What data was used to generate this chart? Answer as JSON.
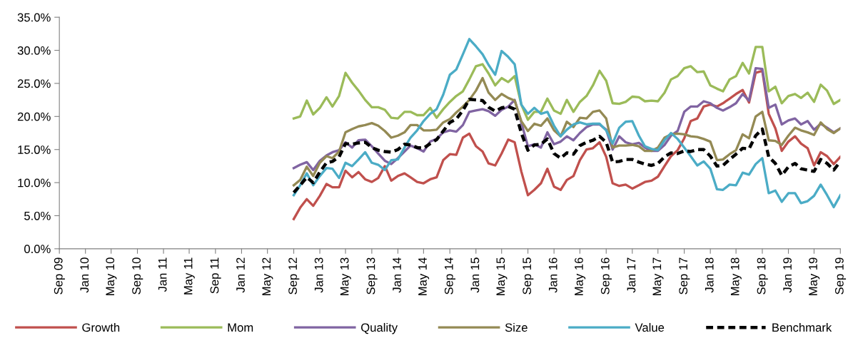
{
  "chart_data": {
    "type": "line",
    "x": [
      "2012-09",
      "2012-10",
      "2012-11",
      "2012-12",
      "2013-01",
      "2013-02",
      "2013-03",
      "2013-04",
      "2013-05",
      "2013-06",
      "2013-07",
      "2013-08",
      "2013-09",
      "2013-10",
      "2013-11",
      "2013-12",
      "2014-01",
      "2014-02",
      "2014-03",
      "2014-04",
      "2014-05",
      "2014-06",
      "2014-07",
      "2014-08",
      "2014-09",
      "2014-10",
      "2014-11",
      "2014-12",
      "2015-01",
      "2015-02",
      "2015-03",
      "2015-04",
      "2015-05",
      "2015-06",
      "2015-07",
      "2015-08",
      "2015-09",
      "2015-10",
      "2015-11",
      "2015-12",
      "2016-01",
      "2016-02",
      "2016-03",
      "2016-04",
      "2016-05",
      "2016-06",
      "2016-07",
      "2016-08",
      "2016-09",
      "2016-10",
      "2016-11",
      "2016-12",
      "2017-01",
      "2017-02",
      "2017-03",
      "2017-04",
      "2017-05",
      "2017-06",
      "2017-07",
      "2017-08",
      "2017-09",
      "2017-10",
      "2017-11",
      "2017-12",
      "2018-01",
      "2018-02",
      "2018-03",
      "2018-04",
      "2018-05",
      "2018-06",
      "2018-07",
      "2018-08",
      "2018-09",
      "2018-10",
      "2018-11",
      "2018-12",
      "2019-01",
      "2019-02",
      "2019-03",
      "2019-04",
      "2019-05",
      "2019-06",
      "2019-07",
      "2019-08",
      "2019-09"
    ],
    "series": [
      {
        "name": "Growth",
        "color": "#c0504d",
        "values": [
          4.5,
          6.2,
          7.5,
          6.5,
          8.0,
          9.8,
          9.3,
          9.3,
          11.8,
          10.8,
          11.6,
          10.5,
          10.1,
          10.7,
          12.5,
          10.3,
          11.0,
          11.4,
          10.8,
          10.1,
          9.9,
          10.5,
          10.8,
          13.4,
          14.3,
          14.2,
          16.8,
          17.4,
          15.5,
          14.7,
          12.9,
          12.6,
          14.4,
          16.5,
          16.1,
          11.7,
          8.1,
          8.9,
          9.9,
          12.1,
          9.4,
          8.9,
          10.4,
          11.0,
          13.4,
          15.0,
          15.2,
          16.1,
          13.9,
          9.9,
          9.5,
          9.7,
          9.1,
          9.6,
          10.1,
          10.3,
          10.9,
          12.5,
          14.0,
          14.9,
          16.7,
          19.3,
          19.7,
          21.5,
          21.8,
          21.5,
          22.0,
          22.7,
          23.4,
          24.0,
          22.1,
          26.6,
          26.9,
          20.4,
          18.2,
          14.8,
          16.2,
          17.0,
          15.9,
          15.2,
          12.6,
          14.6,
          14.0,
          12.8,
          13.9
        ]
      },
      {
        "name": "Mom",
        "color": "#9bbb59",
        "values": [
          19.7,
          20.0,
          22.4,
          20.3,
          21.3,
          22.9,
          21.5,
          23.1,
          26.6,
          25.1,
          23.9,
          22.5,
          21.4,
          21.4,
          21.0,
          19.8,
          19.7,
          20.7,
          20.7,
          20.2,
          20.2,
          21.3,
          19.8,
          21.1,
          22.2,
          23.1,
          23.8,
          25.6,
          27.6,
          27.9,
          26.5,
          24.7,
          25.8,
          25.2,
          26.1,
          21.8,
          19.5,
          20.7,
          20.7,
          22.7,
          20.9,
          20.4,
          22.5,
          20.7,
          22.2,
          23.1,
          24.7,
          26.9,
          25.4,
          22.0,
          21.9,
          22.2,
          23.0,
          22.9,
          22.3,
          22.4,
          22.3,
          23.6,
          25.6,
          26.1,
          27.3,
          27.6,
          26.7,
          26.8,
          24.7,
          24.2,
          23.8,
          25.6,
          26.1,
          28.1,
          26.5,
          30.5,
          30.5,
          23.8,
          24.5,
          22.0,
          23.1,
          23.4,
          22.8,
          23.6,
          22.2,
          24.8,
          23.9,
          21.9,
          22.5
        ]
      },
      {
        "name": "Quality",
        "color": "#8064a2",
        "values": [
          12.2,
          12.7,
          13.1,
          11.9,
          13.3,
          14.1,
          14.6,
          14.9,
          16.1,
          15.3,
          16.4,
          16.5,
          15.5,
          14.4,
          13.3,
          12.8,
          13.7,
          14.7,
          15.6,
          15.2,
          14.7,
          16.2,
          16.6,
          17.6,
          17.9,
          17.7,
          18.7,
          20.7,
          20.9,
          21.1,
          20.8,
          20.1,
          21.0,
          21.5,
          22.5,
          19.1,
          15.5,
          15.8,
          15.3,
          17.6,
          15.8,
          16.2,
          17.0,
          16.4,
          17.5,
          18.4,
          18.8,
          18.8,
          18.0,
          15.0,
          17.0,
          16.1,
          15.8,
          16.0,
          15.3,
          14.8,
          14.8,
          15.7,
          17.1,
          17.8,
          20.7,
          21.5,
          21.5,
          22.3,
          22.0,
          21.3,
          20.9,
          21.4,
          22.0,
          23.4,
          22.4,
          27.3,
          27.2,
          21.3,
          21.8,
          18.8,
          19.4,
          19.7,
          18.8,
          19.3,
          18.0,
          18.9,
          18.3,
          17.6,
          18.2
        ]
      },
      {
        "name": "Size",
        "color": "#948a54",
        "values": [
          9.6,
          10.4,
          12.4,
          11.0,
          13.0,
          14.0,
          13.7,
          14.7,
          17.6,
          18.1,
          18.5,
          18.7,
          19.0,
          18.6,
          17.8,
          16.8,
          17.1,
          17.6,
          18.7,
          18.7,
          17.9,
          17.9,
          18.0,
          19.1,
          19.6,
          20.6,
          21.5,
          22.5,
          23.9,
          25.8,
          23.6,
          22.5,
          23.4,
          22.8,
          22.4,
          19.3,
          17.8,
          18.9,
          18.6,
          19.7,
          17.9,
          17.0,
          19.2,
          18.4,
          19.8,
          19.7,
          20.7,
          20.9,
          19.7,
          15.3,
          15.6,
          15.6,
          15.7,
          15.5,
          14.8,
          14.8,
          15.3,
          16.8,
          17.3,
          17.4,
          17.3,
          17.0,
          16.9,
          16.6,
          16.2,
          13.4,
          13.5,
          14.3,
          14.9,
          17.3,
          16.7,
          20.0,
          20.7,
          16.4,
          16.3,
          15.7,
          17.1,
          18.3,
          17.9,
          17.6,
          17.2,
          19.1,
          18.1,
          17.5,
          18.2
        ]
      },
      {
        "name": "Value",
        "color": "#4bacc6",
        "values": [
          8.1,
          9.6,
          11.4,
          9.6,
          11.0,
          12.2,
          12.1,
          10.7,
          13.0,
          12.5,
          13.5,
          14.6,
          13.0,
          12.7,
          11.9,
          13.4,
          13.5,
          15.3,
          16.8,
          17.9,
          19.3,
          20.4,
          21.1,
          23.3,
          26.3,
          27.1,
          29.4,
          31.7,
          30.6,
          29.4,
          27.8,
          26.3,
          29.9,
          29.0,
          27.9,
          21.8,
          20.4,
          21.3,
          20.4,
          20.7,
          18.6,
          17.0,
          18.0,
          18.8,
          19.1,
          18.8,
          18.9,
          18.9,
          17.9,
          15.9,
          18.3,
          19.2,
          19.3,
          17.1,
          15.5,
          15.1,
          14.9,
          16.4,
          17.5,
          16.6,
          15.3,
          14.0,
          12.6,
          13.2,
          12.1,
          9.0,
          8.9,
          9.7,
          9.6,
          11.5,
          11.2,
          12.8,
          13.7,
          8.4,
          8.8,
          7.1,
          8.4,
          8.4,
          6.9,
          7.2,
          8.0,
          9.7,
          8.1,
          6.3,
          8.1
        ]
      },
      {
        "name": "Benchmark",
        "color": "#000000",
        "line_style": "dashed",
        "values": [
          8.5,
          9.6,
          10.8,
          10.0,
          11.6,
          13.0,
          13.2,
          13.9,
          15.9,
          15.8,
          16.0,
          16.1,
          15.3,
          14.9,
          14.7,
          14.6,
          15.0,
          15.8,
          15.7,
          15.3,
          15.2,
          15.9,
          16.5,
          17.8,
          19.1,
          19.6,
          20.9,
          22.6,
          22.5,
          22.4,
          21.4,
          20.8,
          21.3,
          21.5,
          21.1,
          17.5,
          14.9,
          15.7,
          15.8,
          16.6,
          14.4,
          13.7,
          14.5,
          14.3,
          15.6,
          16.1,
          16.4,
          17.0,
          16.1,
          13.1,
          13.2,
          13.5,
          13.5,
          13.1,
          12.8,
          12.6,
          12.9,
          13.9,
          14.5,
          14.4,
          14.8,
          14.7,
          15.0,
          15.0,
          14.0,
          12.5,
          12.6,
          13.5,
          14.3,
          15.2,
          15.1,
          17.1,
          18.1,
          13.9,
          12.9,
          11.1,
          12.4,
          12.9,
          12.1,
          11.9,
          11.7,
          13.5,
          12.9,
          11.9,
          13.2
        ]
      }
    ],
    "xlim": [
      "2009-09",
      "2019-09"
    ],
    "xticks": [
      {
        "value": "2009-09",
        "label": "Sep 09"
      },
      {
        "value": "2010-01",
        "label": "Jan 10"
      },
      {
        "value": "2010-05",
        "label": "May 10"
      },
      {
        "value": "2010-09",
        "label": "Sep 10"
      },
      {
        "value": "2011-01",
        "label": "Jan 11"
      },
      {
        "value": "2011-05",
        "label": "May 11"
      },
      {
        "value": "2011-09",
        "label": "Sep 11"
      },
      {
        "value": "2012-01",
        "label": "Jan 12"
      },
      {
        "value": "2012-05",
        "label": "May 12"
      },
      {
        "value": "2012-09",
        "label": "Sep 12"
      },
      {
        "value": "2013-01",
        "label": "Jan 13"
      },
      {
        "value": "2013-05",
        "label": "May 13"
      },
      {
        "value": "2013-09",
        "label": "Sep 13"
      },
      {
        "value": "2014-01",
        "label": "Jan 14"
      },
      {
        "value": "2014-05",
        "label": "May 14"
      },
      {
        "value": "2014-09",
        "label": "Sep 14"
      },
      {
        "value": "2015-01",
        "label": "Jan 15"
      },
      {
        "value": "2015-05",
        "label": "May 15"
      },
      {
        "value": "2015-09",
        "label": "Sep 15"
      },
      {
        "value": "2016-01",
        "label": "Jan 16"
      },
      {
        "value": "2016-05",
        "label": "May 16"
      },
      {
        "value": "2016-09",
        "label": "Sep 16"
      },
      {
        "value": "2017-01",
        "label": "Jan 17"
      },
      {
        "value": "2017-05",
        "label": "May 17"
      },
      {
        "value": "2017-09",
        "label": "Sep 17"
      },
      {
        "value": "2018-01",
        "label": "Jan 18"
      },
      {
        "value": "2018-05",
        "label": "May 18"
      },
      {
        "value": "2018-09",
        "label": "Sep 18"
      },
      {
        "value": "2019-01",
        "label": "Jan 19"
      },
      {
        "value": "2019-05",
        "label": "May 19"
      },
      {
        "value": "2019-09",
        "label": "Sep 19"
      }
    ],
    "ylim": [
      0,
      35
    ],
    "yticks": [
      {
        "value": 0,
        "label": "0.0%"
      },
      {
        "value": 5,
        "label": "5.0%"
      },
      {
        "value": 10,
        "label": "10.0%"
      },
      {
        "value": 15,
        "label": "15.0%"
      },
      {
        "value": 20,
        "label": "20.0%"
      },
      {
        "value": 25,
        "label": "25.0%"
      },
      {
        "value": 30,
        "label": "30.0%"
      },
      {
        "value": 35,
        "label": "35.0%"
      }
    ],
    "grid": false,
    "legend": "bottom",
    "marker": "none",
    "line_style": "solid"
  }
}
